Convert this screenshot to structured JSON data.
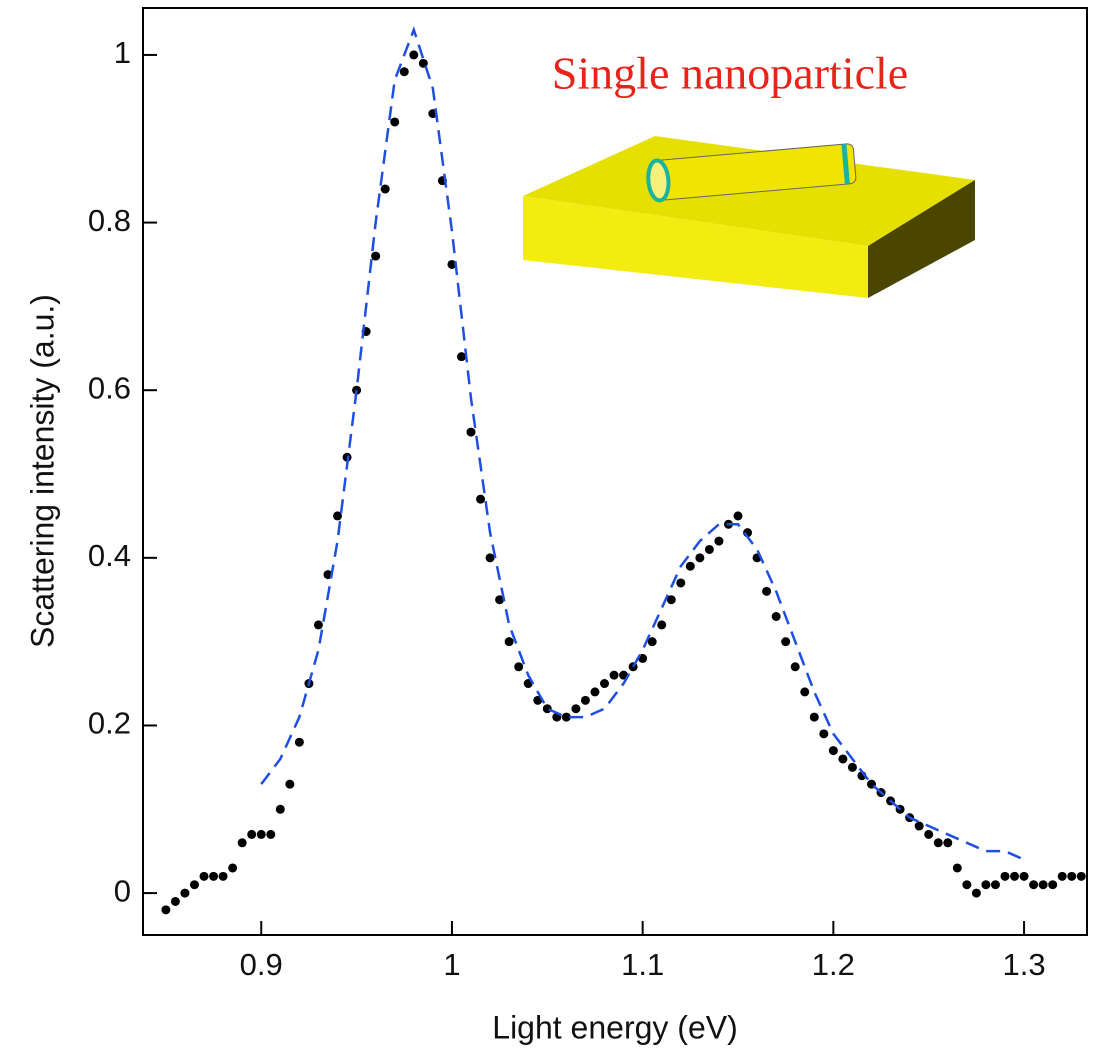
{
  "chart_data": {
    "type": "scatter",
    "xlabel": "Light energy (eV)",
    "ylabel": "Scattering intensity (a.u.)",
    "annotations": [
      {
        "text": "Single nanoparticle",
        "color": "#e8241a"
      }
    ],
    "xlim": [
      0.838,
      1.333
    ],
    "ylim": [
      -0.05,
      1.056
    ],
    "xticks": [
      0.9,
      1,
      1.1,
      1.2,
      1.3
    ],
    "yticks": [
      0,
      0.2,
      0.4,
      0.6,
      0.8,
      1
    ],
    "series": [
      {
        "type": "scatter",
        "color": "#000000",
        "x": [
          0.85,
          0.855,
          0.86,
          0.865,
          0.87,
          0.875,
          0.88,
          0.885,
          0.89,
          0.895,
          0.9,
          0.905,
          0.91,
          0.915,
          0.92,
          0.925,
          0.93,
          0.935,
          0.94,
          0.945,
          0.95,
          0.955,
          0.96,
          0.965,
          0.97,
          0.975,
          0.98,
          0.985,
          0.99,
          0.995,
          1.0,
          1.005,
          1.01,
          1.015,
          1.02,
          1.025,
          1.03,
          1.035,
          1.04,
          1.045,
          1.05,
          1.055,
          1.06,
          1.065,
          1.07,
          1.075,
          1.08,
          1.085,
          1.09,
          1.095,
          1.1,
          1.105,
          1.11,
          1.115,
          1.12,
          1.125,
          1.13,
          1.135,
          1.14,
          1.145,
          1.15,
          1.155,
          1.16,
          1.165,
          1.17,
          1.175,
          1.18,
          1.185,
          1.19,
          1.195,
          1.2,
          1.205,
          1.21,
          1.215,
          1.22,
          1.225,
          1.23,
          1.235,
          1.24,
          1.245,
          1.25,
          1.255,
          1.26,
          1.265,
          1.27,
          1.275,
          1.28,
          1.285,
          1.29,
          1.295,
          1.3,
          1.305,
          1.31,
          1.315,
          1.32,
          1.325,
          1.33
        ],
        "values": [
          -0.02,
          -0.01,
          0.0,
          0.01,
          0.02,
          0.02,
          0.02,
          0.03,
          0.06,
          0.07,
          0.07,
          0.07,
          0.1,
          0.13,
          0.18,
          0.25,
          0.32,
          0.38,
          0.45,
          0.52,
          0.6,
          0.67,
          0.76,
          0.84,
          0.92,
          0.98,
          1.0,
          0.99,
          0.93,
          0.85,
          0.75,
          0.64,
          0.55,
          0.47,
          0.4,
          0.35,
          0.3,
          0.27,
          0.25,
          0.23,
          0.22,
          0.21,
          0.21,
          0.22,
          0.23,
          0.24,
          0.25,
          0.26,
          0.26,
          0.27,
          0.28,
          0.3,
          0.32,
          0.35,
          0.37,
          0.39,
          0.4,
          0.41,
          0.42,
          0.44,
          0.45,
          0.43,
          0.4,
          0.36,
          0.33,
          0.3,
          0.27,
          0.24,
          0.21,
          0.19,
          0.17,
          0.16,
          0.15,
          0.14,
          0.13,
          0.12,
          0.11,
          0.1,
          0.09,
          0.08,
          0.07,
          0.06,
          0.06,
          0.03,
          0.01,
          0.0,
          0.01,
          0.01,
          0.02,
          0.02,
          0.02,
          0.01,
          0.01,
          0.01,
          0.02,
          0.02,
          0.02
        ]
      },
      {
        "type": "line",
        "color": "#1f4fe0",
        "dashed": true,
        "x": [
          0.9,
          0.91,
          0.92,
          0.93,
          0.94,
          0.95,
          0.96,
          0.97,
          0.98,
          0.99,
          1.0,
          1.01,
          1.02,
          1.03,
          1.04,
          1.05,
          1.06,
          1.07,
          1.08,
          1.09,
          1.1,
          1.11,
          1.12,
          1.13,
          1.14,
          1.15,
          1.16,
          1.17,
          1.18,
          1.19,
          1.2,
          1.21,
          1.22,
          1.23,
          1.24,
          1.25,
          1.26,
          1.27,
          1.28,
          1.29,
          1.3
        ],
        "values": [
          0.13,
          0.16,
          0.21,
          0.29,
          0.42,
          0.6,
          0.8,
          0.97,
          1.03,
          0.96,
          0.79,
          0.59,
          0.43,
          0.32,
          0.26,
          0.22,
          0.21,
          0.21,
          0.22,
          0.25,
          0.29,
          0.34,
          0.39,
          0.42,
          0.44,
          0.44,
          0.41,
          0.36,
          0.3,
          0.24,
          0.19,
          0.16,
          0.13,
          0.11,
          0.09,
          0.08,
          0.07,
          0.06,
          0.05,
          0.05,
          0.04
        ]
      }
    ]
  }
}
